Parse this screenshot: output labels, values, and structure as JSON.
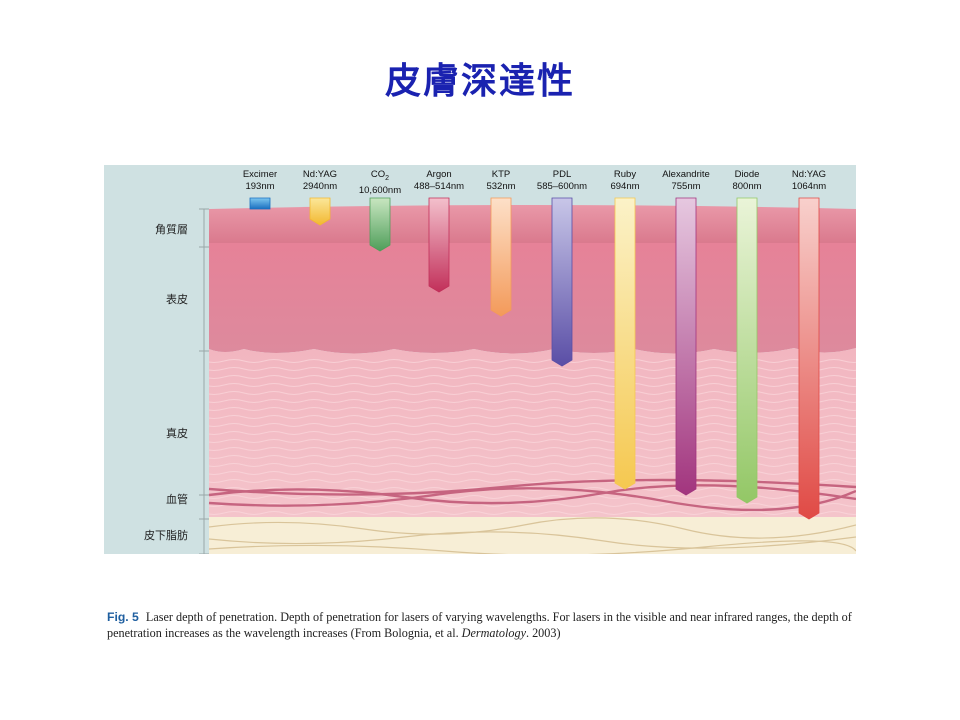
{
  "title": "皮膚深達性",
  "layers": [
    {
      "label": "角質層"
    },
    {
      "label": "表皮"
    },
    {
      "label": "真皮"
    },
    {
      "label": "血管"
    },
    {
      "label": "皮下脂肪"
    }
  ],
  "lasers": [
    {
      "name": "Excimer",
      "wavelength": "193nm",
      "color_top": "#7ec7f0",
      "color_bottom": "#1a6fc0",
      "depth_layer": "stratum corneum (surface)"
    },
    {
      "name": "Nd:YAG",
      "wavelength": "2940nm",
      "color_top": "#fbe79a",
      "color_bottom": "#f2b830",
      "depth_layer": "stratum corneum"
    },
    {
      "name_main": "CO",
      "name_sub": "2",
      "wavelength": "10,600nm",
      "color_top": "#c8e6c0",
      "color_bottom": "#4f9e5a",
      "depth_layer": "upper epidermis"
    },
    {
      "name": "Argon",
      "wavelength": "488–514nm",
      "color_top": "#f3c0cc",
      "color_bottom": "#c2305a",
      "depth_layer": "epidermis"
    },
    {
      "name": "KTP",
      "wavelength": "532nm",
      "color_top": "#fde0c8",
      "color_bottom": "#f39a5a",
      "depth_layer": "epidermis"
    },
    {
      "name": "PDL",
      "wavelength": "585–600nm",
      "color_top": "#c8c6e8",
      "color_bottom": "#5a4ea6",
      "depth_layer": "epidermis–dermis junction"
    },
    {
      "name": "Ruby",
      "wavelength": "694nm",
      "color_top": "#fbf2c8",
      "color_bottom": "#f5c850",
      "depth_layer": "dermis (vessels)"
    },
    {
      "name": "Alexandrite",
      "wavelength": "755nm",
      "color_top": "#e6c8e0",
      "color_bottom": "#a2357e",
      "depth_layer": "dermis (vessels)"
    },
    {
      "name": "Diode",
      "wavelength": "800nm",
      "color_top": "#eaf4d8",
      "color_bottom": "#93c766",
      "depth_layer": "dermis (vessels)"
    },
    {
      "name": "Nd:YAG",
      "wavelength": "1064nm",
      "color_top": "#f8d0cc",
      "color_bottom": "#e04a45",
      "depth_layer": "subcutaneous fat"
    }
  ],
  "caption": {
    "label": "Fig. 5",
    "text": "Laser depth of penetration. Depth of penetration for lasers of varying wavelengths. For lasers in the visible and near infrared ranges, the depth of penetration increases as the wavelength increases (From Bolognia, et al.",
    "source": "Dermatology",
    "year": ". 2003)"
  }
}
